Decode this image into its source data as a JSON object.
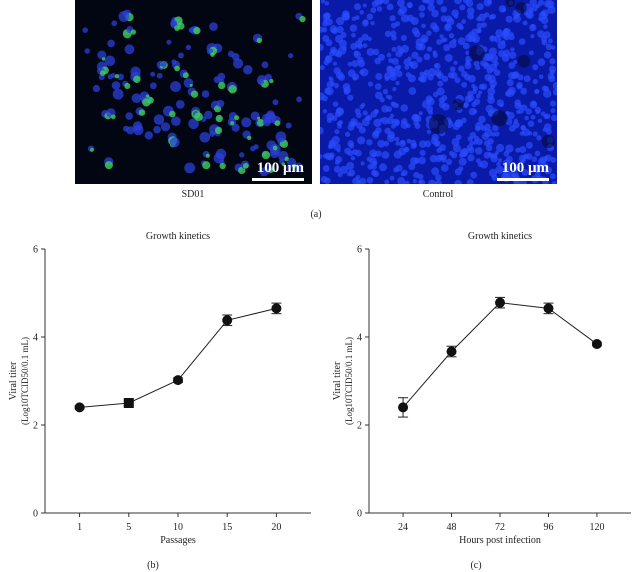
{
  "figure": {
    "panel_a_label": "(a)",
    "panel_b_label": "(b)",
    "panel_c_label": "(c)"
  },
  "images": [
    {
      "caption": "SD01",
      "scale_bar": "100 μm",
      "description_colors": {
        "background": "#020612",
        "nuclei": "#2b3fd9",
        "stain": "#3fd05a"
      }
    },
    {
      "caption": "Control",
      "scale_bar": "100 μm",
      "description_colors": {
        "background": "#0a1aa8",
        "nuclei": "#2a4cff"
      }
    }
  ],
  "chart_data": [
    {
      "type": "line",
      "title": "Growth kinetics",
      "xlabel": "Passages",
      "ylabel": "Viral titer",
      "ylabel2": "(Log10TCID50/0.1 mL)",
      "categories": [
        "1",
        "5",
        "10",
        "15",
        "20"
      ],
      "values": [
        2.4,
        2.5,
        3.02,
        4.38,
        4.65
      ],
      "errors": [
        0.03,
        0.05,
        0.05,
        0.12,
        0.12
      ],
      "markers": [
        "circle",
        "square",
        "circle",
        "circle",
        "circle"
      ],
      "ylim": [
        0,
        6
      ],
      "yticks": [
        0,
        2,
        4,
        6
      ],
      "grid": false
    },
    {
      "type": "line",
      "title": "Growth kinetics",
      "xlabel": "Hours post infection",
      "ylabel": "Viral titer",
      "ylabel2": "(Log10TCID50/0.1 mL)",
      "categories": [
        "24",
        "48",
        "72",
        "96",
        "120"
      ],
      "values": [
        2.4,
        3.67,
        4.78,
        4.65,
        3.84
      ],
      "errors": [
        0.22,
        0.12,
        0.12,
        0.12,
        0.04
      ],
      "markers": [
        "circle",
        "circle",
        "circle",
        "circle",
        "circle"
      ],
      "ylim": [
        0,
        6
      ],
      "yticks": [
        0,
        2,
        4,
        6
      ],
      "grid": false
    }
  ]
}
